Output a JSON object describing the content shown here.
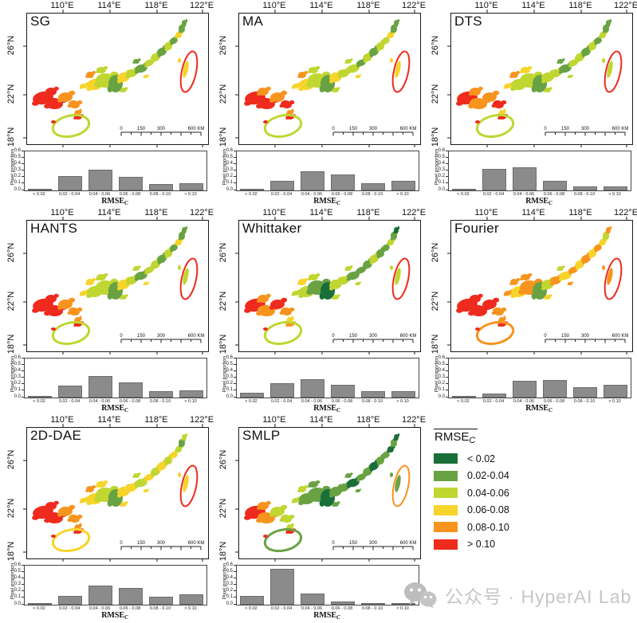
{
  "figure": {
    "lon_labels": [
      "110°E",
      "114°E",
      "118°E",
      "122°E"
    ],
    "lat_labels": [
      "26°N",
      "22°N",
      "18°N"
    ],
    "scalebar_labels": [
      "0",
      "150",
      "300",
      "600 KM"
    ],
    "hist": {
      "ylabel": "Pixel proportion",
      "xlabel_base": "RMSE",
      "xlabel_sub": "C",
      "yticks": [
        "0.0",
        "0.1",
        "0.2",
        "0.3",
        "0.4",
        "0.5",
        "0.6"
      ],
      "ymax": 0.6,
      "bins": [
        "< 0.02",
        "0.02 - 0.04",
        "0.04 - 0.06",
        "0.06 - 0.08",
        "0.08 - 0.10",
        "> 0.10"
      ]
    },
    "legend": {
      "title_base": "RMSE",
      "title_sub": "C",
      "items": [
        {
          "label": "< 0.02",
          "color": "#1a6e38"
        },
        {
          "label": "0.02-0.04",
          "color": "#69a243"
        },
        {
          "label": "0.04-0.06",
          "color": "#c0d631"
        },
        {
          "label": "0.06-0.08",
          "color": "#f7d42a"
        },
        {
          "label": "0.08-0.10",
          "color": "#f7941e"
        },
        {
          "label": "> 0.10",
          "color": "#ee2b1e"
        }
      ]
    },
    "watermark": {
      "text": "公众号 · HyperAI Lab"
    }
  },
  "panels": [
    {
      "title": "SG",
      "map_classes": [
        5,
        5,
        4,
        4,
        5,
        4,
        3,
        3,
        2,
        1,
        3,
        2,
        4,
        2,
        2,
        1,
        2,
        1,
        3,
        2,
        1,
        2,
        1,
        3,
        1,
        1,
        5,
        2,
        5,
        3
      ]
    },
    {
      "title": "MA",
      "map_classes": [
        5,
        5,
        4,
        5,
        4,
        4,
        3,
        3,
        2,
        1,
        3,
        2,
        4,
        2,
        2,
        2,
        1,
        2,
        3,
        2,
        1,
        2,
        2,
        3,
        1,
        1,
        5,
        2,
        5,
        3
      ]
    },
    {
      "title": "DTS",
      "map_classes": [
        5,
        4,
        4,
        5,
        4,
        3,
        3,
        2,
        2,
        1,
        2,
        3,
        4,
        2,
        2,
        1,
        2,
        1,
        2,
        2,
        1,
        2,
        1,
        2,
        1,
        1,
        5,
        2,
        5,
        2
      ]
    },
    {
      "title": "HANTS",
      "map_classes": [
        5,
        5,
        4,
        4,
        5,
        4,
        3,
        2,
        2,
        1,
        3,
        2,
        3,
        2,
        2,
        1,
        2,
        2,
        3,
        2,
        1,
        2,
        1,
        3,
        1,
        1,
        5,
        2,
        5,
        2
      ]
    },
    {
      "title": "Whittaker",
      "map_classes": [
        5,
        4,
        5,
        4,
        4,
        3,
        2,
        2,
        1,
        0,
        2,
        2,
        3,
        2,
        2,
        1,
        1,
        2,
        2,
        1,
        2,
        1,
        1,
        2,
        1,
        0,
        4,
        2,
        5,
        2
      ]
    },
    {
      "title": "Fourier",
      "map_classes": [
        5,
        5,
        5,
        4,
        5,
        4,
        4,
        3,
        4,
        1,
        2,
        4,
        4,
        3,
        4,
        3,
        4,
        2,
        4,
        3,
        4,
        3,
        4,
        3,
        2,
        4,
        5,
        4,
        5,
        4
      ]
    },
    {
      "title": "2D-DAE",
      "map_classes": [
        5,
        5,
        4,
        4,
        5,
        4,
        3,
        3,
        2,
        1,
        3,
        3,
        4,
        3,
        3,
        2,
        3,
        2,
        3,
        2,
        3,
        2,
        3,
        2,
        1,
        2,
        5,
        3,
        5,
        3
      ]
    },
    {
      "title": "SMLP",
      "map_classes": [
        5,
        4,
        2,
        2,
        4,
        2,
        2,
        1,
        1,
        0,
        1,
        1,
        2,
        1,
        1,
        0,
        1,
        1,
        1,
        1,
        0,
        1,
        1,
        0,
        1,
        0,
        5,
        1,
        4,
        1
      ]
    }
  ],
  "chart_data": [
    {
      "type": "bar",
      "title": "SG",
      "categories": [
        "< 0.02",
        "0.02 - 0.04",
        "0.04 - 0.06",
        "0.06 - 0.08",
        "0.08 - 0.10",
        "> 0.10"
      ],
      "values": [
        0.005,
        0.23,
        0.33,
        0.22,
        0.1,
        0.11
      ],
      "xlabel": "RMSE_C",
      "ylabel": "Pixel proportion",
      "ylim": [
        0,
        0.6
      ]
    },
    {
      "type": "bar",
      "title": "MA",
      "categories": [
        "< 0.02",
        "0.02 - 0.04",
        "0.04 - 0.06",
        "0.06 - 0.08",
        "0.08 - 0.10",
        "> 0.10"
      ],
      "values": [
        0.0,
        0.15,
        0.31,
        0.25,
        0.12,
        0.15
      ],
      "xlabel": "RMSE_C",
      "ylabel": "Pixel proportion",
      "ylim": [
        0,
        0.6
      ]
    },
    {
      "type": "bar",
      "title": "DTS",
      "categories": [
        "< 0.02",
        "0.02 - 0.04",
        "0.04 - 0.06",
        "0.06 - 0.08",
        "0.08 - 0.10",
        "> 0.10"
      ],
      "values": [
        0.015,
        0.34,
        0.37,
        0.15,
        0.07,
        0.06
      ],
      "xlabel": "RMSE_C",
      "ylabel": "Pixel proportion",
      "ylim": [
        0,
        0.6
      ]
    },
    {
      "type": "bar",
      "title": "HANTS",
      "categories": [
        "< 0.02",
        "0.02 - 0.04",
        "0.04 - 0.06",
        "0.06 - 0.08",
        "0.08 - 0.10",
        "> 0.10"
      ],
      "values": [
        0.0,
        0.19,
        0.35,
        0.24,
        0.1,
        0.11
      ],
      "xlabel": "RMSE_C",
      "ylabel": "Pixel proportion",
      "ylim": [
        0,
        0.6
      ]
    },
    {
      "type": "bar",
      "title": "Whittaker",
      "categories": [
        "< 0.02",
        "0.02 - 0.04",
        "0.04 - 0.06",
        "0.06 - 0.08",
        "0.08 - 0.10",
        "> 0.10"
      ],
      "values": [
        0.08,
        0.23,
        0.3,
        0.21,
        0.1,
        0.1
      ],
      "xlabel": "RMSE_C",
      "ylabel": "Pixel proportion",
      "ylim": [
        0,
        0.6
      ]
    },
    {
      "type": "bar",
      "title": "Fourier",
      "categories": [
        "< 0.02",
        "0.02 - 0.04",
        "0.04 - 0.06",
        "0.06 - 0.08",
        "0.08 - 0.10",
        "> 0.10"
      ],
      "values": [
        0.0,
        0.06,
        0.27,
        0.28,
        0.17,
        0.21
      ],
      "xlabel": "RMSE_C",
      "ylabel": "Pixel proportion",
      "ylim": [
        0,
        0.6
      ]
    },
    {
      "type": "bar",
      "title": "2D-DAE",
      "categories": [
        "< 0.02",
        "0.02 - 0.04",
        "0.04 - 0.06",
        "0.06 - 0.08",
        "0.08 - 0.10",
        "> 0.10"
      ],
      "values": [
        0.0,
        0.14,
        0.31,
        0.27,
        0.13,
        0.16
      ],
      "xlabel": "RMSE_C",
      "ylabel": "Pixel proportion",
      "ylim": [
        0,
        0.6
      ]
    },
    {
      "type": "bar",
      "title": "SMLP",
      "categories": [
        "< 0.02",
        "0.02 - 0.04",
        "0.04 - 0.06",
        "0.06 - 0.08",
        "0.08 - 0.10",
        "> 0.10"
      ],
      "values": [
        0.14,
        0.58,
        0.18,
        0.05,
        0.03,
        0.015
      ],
      "xlabel": "RMSE_C",
      "ylabel": "Pixel proportion",
      "ylim": [
        0,
        0.6
      ]
    }
  ]
}
